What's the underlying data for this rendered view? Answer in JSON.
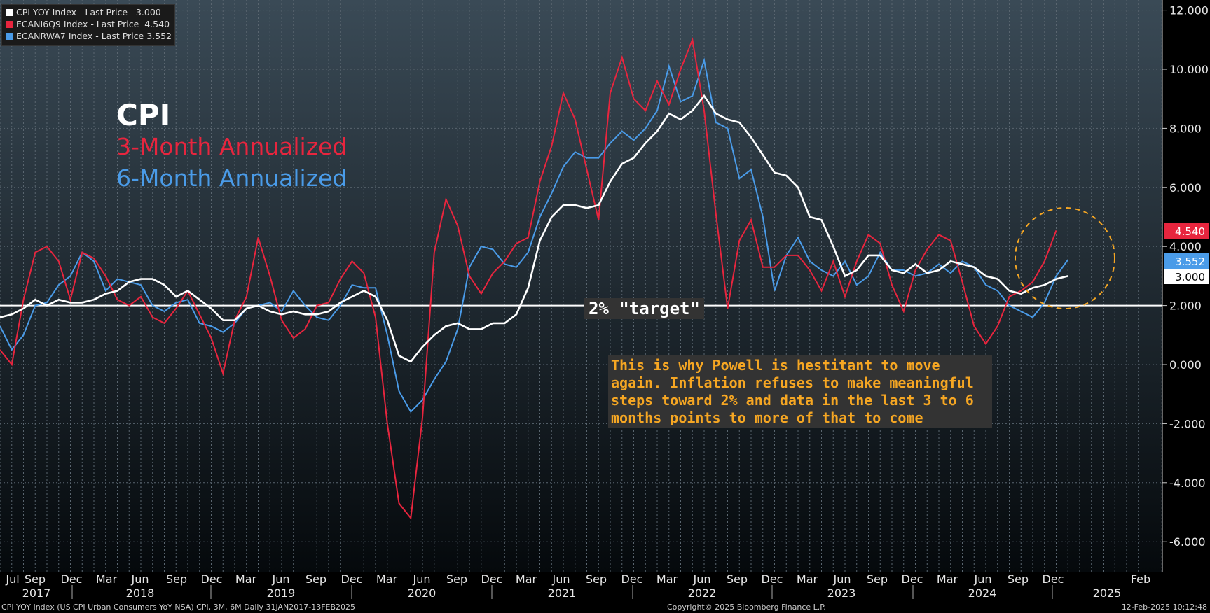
{
  "legend": [
    {
      "label": "CPI YOY Index - Last Price   3.000",
      "color": "#ffffff"
    },
    {
      "label": "ECANI6Q9 Index - Last Price  4.540",
      "color": "#e8253e"
    },
    {
      "label": "ECANRWA7 Index - Last Price 3.552",
      "color": "#4a9be8"
    }
  ],
  "annotations": {
    "title": "CPI",
    "line1": "3-Month Annualized",
    "line2": "6-Month Annualized",
    "target": "2% \"target\"",
    "note": "This is why Powell is hestitant to move again. Inflation refuses to make meaningful steps toward 2% and data in the last 3 to 6 months points to more of that to come"
  },
  "footer": {
    "left": "CPI YOY Index (US CPI Urban Consumers YoY NSA) CPI, 3M, 6M  Daily 31JAN2017-13FEB2025",
    "mid": "Copyright© 2025 Bloomberg Finance L.P.",
    "right": "12-Feb-2025 10:12:48"
  },
  "chart_data": {
    "type": "line",
    "ylim": [
      -7,
      12.5
    ],
    "yticks": [
      "12.000",
      "10.000",
      "8.000",
      "6.000",
      "4.000",
      "2.000",
      "0.000",
      "-2.000",
      "-4.000",
      "-6.000"
    ],
    "ytick_values": [
      12,
      10,
      8,
      6,
      4,
      2,
      0,
      -2,
      -4,
      -6
    ],
    "month_labels": [
      "Jul",
      "Sep",
      "Dec",
      "Mar",
      "Jun",
      "Sep",
      "Dec",
      "Mar",
      "Jun",
      "Sep",
      "Dec",
      "Mar",
      "Jun",
      "Sep",
      "Dec",
      "Mar",
      "Jun",
      "Sep",
      "Dec",
      "Mar",
      "Jun",
      "Sep",
      "Dec",
      "Mar",
      "Jun",
      "Sep",
      "Dec",
      "Mar",
      "Jun",
      "Sep",
      "Dec",
      "Feb"
    ],
    "year_labels": [
      "2017",
      "2018",
      "2019",
      "2020",
      "2021",
      "2022",
      "2023",
      "2024",
      "2025"
    ],
    "last_values": [
      {
        "label": "4.540",
        "value": 4.54,
        "color": "#e8253e"
      },
      {
        "label": "3.552",
        "value": 3.552,
        "color": "#4a9be8"
      },
      {
        "label": "3.000",
        "value": 3.0,
        "color": "#ffffff"
      }
    ],
    "target": 2,
    "series": [
      {
        "name": "CPI YOY Index",
        "color": "#ffffff",
        "values": [
          1.6,
          1.7,
          1.9,
          2.2,
          2.0,
          2.2,
          2.1,
          2.1,
          2.2,
          2.4,
          2.5,
          2.8,
          2.9,
          2.9,
          2.7,
          2.3,
          2.5,
          2.2,
          1.9,
          1.5,
          1.5,
          1.9,
          2.0,
          1.8,
          1.7,
          1.8,
          1.7,
          1.7,
          1.8,
          2.1,
          2.3,
          2.5,
          2.3,
          1.5,
          0.3,
          0.1,
          0.6,
          1.0,
          1.3,
          1.4,
          1.2,
          1.2,
          1.4,
          1.4,
          1.7,
          2.6,
          4.2,
          5.0,
          5.4,
          5.4,
          5.3,
          5.4,
          6.2,
          6.8,
          7.0,
          7.5,
          7.9,
          8.5,
          8.3,
          8.6,
          9.1,
          8.5,
          8.3,
          8.2,
          7.7,
          7.1,
          6.5,
          6.4,
          6.0,
          5.0,
          4.9,
          4.0,
          3.0,
          3.2,
          3.7,
          3.7,
          3.2,
          3.1,
          3.4,
          3.1,
          3.2,
          3.5,
          3.4,
          3.3,
          3.0,
          2.9,
          2.5,
          2.4,
          2.6,
          2.7,
          2.9,
          3.0
        ]
      },
      {
        "name": "ECANI6Q9 Index",
        "color": "#e8253e",
        "values": [
          0.5,
          0.0,
          2.2,
          3.8,
          4.0,
          3.5,
          2.2,
          3.8,
          3.6,
          3.0,
          2.2,
          2.0,
          2.3,
          1.6,
          1.4,
          1.9,
          2.5,
          1.7,
          0.9,
          -0.3,
          1.5,
          2.3,
          4.3,
          3.0,
          1.5,
          0.9,
          1.2,
          2.0,
          2.1,
          2.9,
          3.5,
          3.1,
          1.6,
          -2.0,
          -4.7,
          -5.2,
          -1.8,
          3.8,
          5.6,
          4.7,
          3.0,
          2.4,
          3.1,
          3.5,
          4.1,
          4.3,
          6.2,
          7.4,
          9.2,
          8.3,
          6.6,
          4.9,
          9.2,
          10.4,
          9.0,
          8.6,
          9.6,
          8.8,
          10.0,
          11.0,
          8.6,
          5.1,
          1.9,
          4.2,
          4.9,
          3.3,
          3.3,
          3.7,
          3.7,
          3.2,
          2.5,
          3.5,
          2.3,
          3.5,
          4.4,
          4.1,
          2.7,
          1.8,
          3.2,
          3.9,
          4.4,
          4.2,
          2.8,
          1.3,
          0.7,
          1.3,
          2.3,
          2.5,
          2.8,
          3.5,
          4.54
        ]
      },
      {
        "name": "ECANRWA7 Index",
        "color": "#4a9be8",
        "values": [
          1.3,
          0.5,
          1.0,
          2.0,
          2.1,
          2.7,
          3.0,
          3.8,
          3.5,
          2.5,
          2.9,
          2.8,
          2.7,
          2.0,
          1.8,
          2.1,
          2.2,
          1.4,
          1.3,
          1.1,
          1.4,
          1.9,
          2.0,
          2.1,
          1.8,
          2.5,
          2.0,
          1.6,
          1.5,
          2.0,
          2.7,
          2.6,
          2.6,
          1.0,
          -0.9,
          -1.6,
          -1.2,
          -0.5,
          0.1,
          1.2,
          3.3,
          4.0,
          3.9,
          3.4,
          3.3,
          3.8,
          5.0,
          5.8,
          6.7,
          7.2,
          7.0,
          7.0,
          7.5,
          7.9,
          7.6,
          8.0,
          8.6,
          10.1,
          8.9,
          9.1,
          10.3,
          8.2,
          8.0,
          6.3,
          6.6,
          5.0,
          2.5,
          3.7,
          4.3,
          3.5,
          3.2,
          3.0,
          3.5,
          2.7,
          3.0,
          3.8,
          3.2,
          3.2,
          3.0,
          3.1,
          3.4,
          3.1,
          3.5,
          3.3,
          2.7,
          2.5,
          2.0,
          1.8,
          1.6,
          2.1,
          3.0,
          3.552
        ]
      }
    ]
  }
}
